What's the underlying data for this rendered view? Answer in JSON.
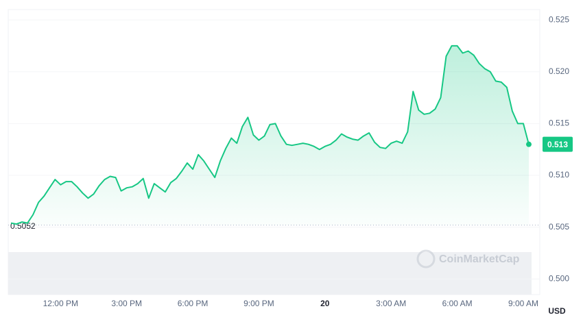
{
  "chart_data": {
    "type": "line",
    "categories": [
      null,
      null,
      null,
      null,
      null,
      null,
      null,
      null,
      null,
      "12:00 PM",
      null,
      null,
      null,
      null,
      null,
      null,
      null,
      null,
      null,
      null,
      null,
      "3:00 PM",
      null,
      null,
      null,
      null,
      null,
      null,
      null,
      null,
      null,
      null,
      null,
      "6:00 PM",
      null,
      null,
      null,
      null,
      null,
      null,
      null,
      null,
      null,
      null,
      null,
      "9:00 PM",
      null,
      null,
      null,
      null,
      null,
      null,
      null,
      null,
      null,
      null,
      null,
      "20",
      null,
      null,
      null,
      null,
      null,
      null,
      null,
      null,
      null,
      null,
      null,
      "3:00 AM",
      null,
      null,
      null,
      null,
      null,
      null,
      null,
      null,
      null,
      null,
      null,
      "6:00 AM",
      null,
      null,
      null,
      null,
      null,
      null,
      null,
      null,
      null,
      null,
      null,
      "9:00 AM",
      null
    ],
    "values": [
      0.5054,
      0.5053,
      0.5055,
      0.5054,
      0.5062,
      0.5074,
      0.508,
      0.5088,
      0.5096,
      0.5091,
      0.5094,
      0.5094,
      0.5089,
      0.5083,
      0.5078,
      0.5082,
      0.509,
      0.5096,
      0.5099,
      0.5098,
      0.5085,
      0.5088,
      0.5089,
      0.5092,
      0.5097,
      0.5078,
      0.5092,
      0.5088,
      0.5084,
      0.5093,
      0.5097,
      0.5104,
      0.5112,
      0.5106,
      0.512,
      0.5114,
      0.5106,
      0.5098,
      0.5114,
      0.5126,
      0.5136,
      0.5131,
      0.5147,
      0.5156,
      0.5139,
      0.5134,
      0.5138,
      0.5149,
      0.515,
      0.5138,
      0.513,
      0.5129,
      0.513,
      0.5131,
      0.513,
      0.5128,
      0.5125,
      0.5128,
      0.513,
      0.5134,
      0.514,
      0.5137,
      0.5135,
      0.5134,
      0.5138,
      0.5141,
      0.5132,
      0.5127,
      0.5126,
      0.5131,
      0.5133,
      0.5131,
      0.5142,
      0.5181,
      0.5163,
      0.5159,
      0.516,
      0.5164,
      0.5175,
      0.5215,
      0.5225,
      0.5225,
      0.5218,
      0.522,
      0.5216,
      0.5208,
      0.5203,
      0.52,
      0.5191,
      0.519,
      0.5185,
      0.5162,
      0.515,
      0.515,
      0.513
    ],
    "color": "#16c784",
    "reference": 0.5052,
    "ylim": [
      0.4985,
      0.526
    ],
    "yticks": [
      {
        "value": 0.5,
        "label": "0.500"
      },
      0.505,
      {
        "value": 0.51,
        "label": "0.510"
      },
      0.515,
      {
        "value": 0.52,
        "label": "0.520"
      },
      0.525
    ],
    "grid": true,
    "y_unit": "USD",
    "watermark": "CoinMarketCap"
  }
}
